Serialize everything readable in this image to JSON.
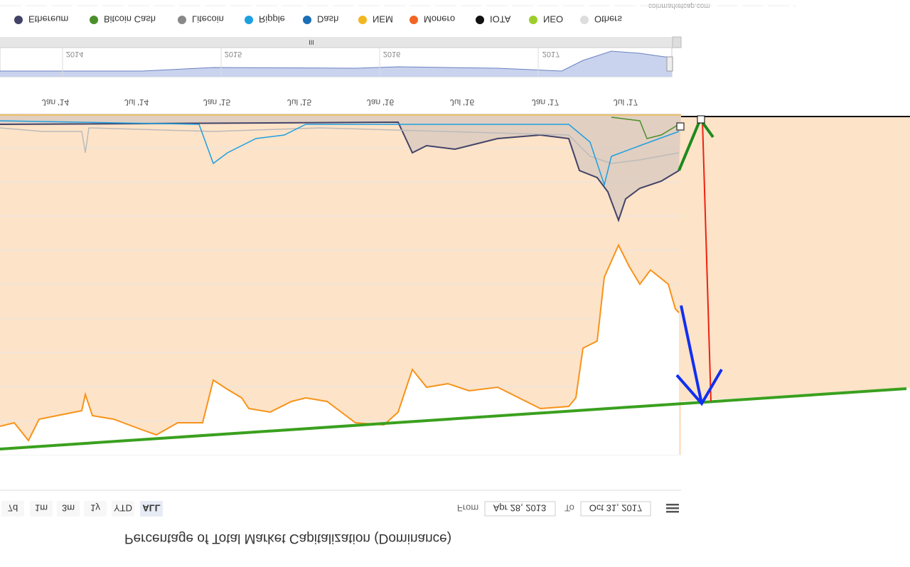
{
  "credit": "coinmarketcap.com",
  "legend": [
    "Ethereum",
    "Bitcoin Cash",
    "Litecoin",
    "Ripple",
    "Dash",
    "NEM",
    "Monero",
    "IOTA",
    "NEO",
    "Others"
  ],
  "navigator": {
    "handle": "III",
    "years": [
      "2014",
      "2015",
      "2016",
      "2017"
    ]
  },
  "x_axis_labels": [
    "Jan '14",
    "Jul '14",
    "Jan '15",
    "Jul '15",
    "Jan '16",
    "Jul '16",
    "Jan '17",
    "Jul '17"
  ],
  "range_buttons": [
    "7d",
    "1m",
    "3m",
    "1y",
    "YTD",
    "ALL"
  ],
  "date_range": {
    "from_label": "From",
    "from": "Apr 28, 2013",
    "to_label": "To",
    "to": "Oct 31, 2017"
  },
  "title": "Percentage of Total Market Capitalization (Dominance)"
}
